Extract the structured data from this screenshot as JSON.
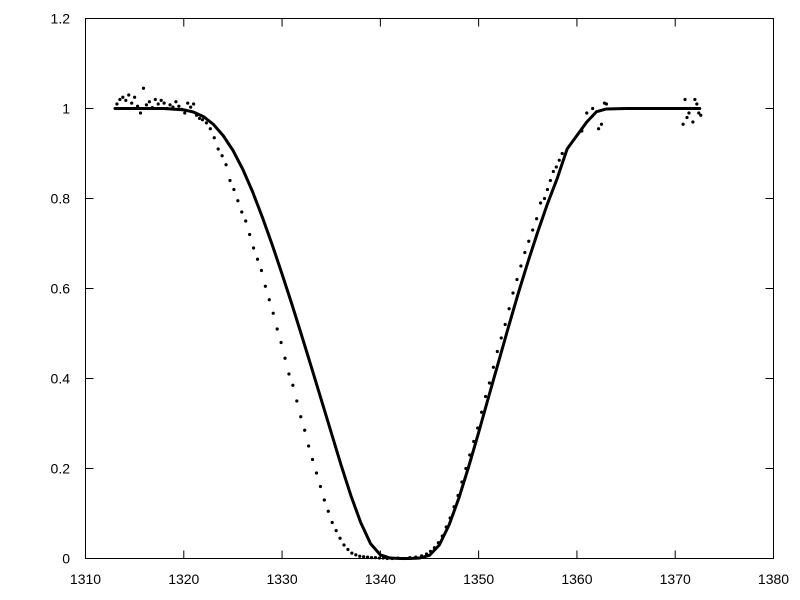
{
  "chart_data": {
    "type": "line",
    "title": "",
    "xlabel": "",
    "ylabel": "",
    "xlim": [
      1310,
      1380
    ],
    "ylim": [
      0,
      1.2
    ],
    "x_ticks": [
      1310,
      1320,
      1330,
      1340,
      1350,
      1360,
      1370,
      1380
    ],
    "y_ticks": [
      0,
      0.2,
      0.4,
      0.6,
      0.8,
      1,
      1.2
    ],
    "x_tick_labels": [
      "1310",
      "1320",
      "1330",
      "1340",
      "1350",
      "1360",
      "1370",
      "1380"
    ],
    "y_tick_labels": [
      "0",
      "0.2",
      "0.4",
      "0.6",
      "0.8",
      "1",
      "1.2"
    ],
    "grid": false,
    "legend": "none",
    "colors": {
      "line": "#000000",
      "points": "#000000",
      "axis": "#000000",
      "background": "#ffffff"
    },
    "series": [
      {
        "kind": "line",
        "x": [
          1313,
          1316,
          1318,
          1320,
          1321,
          1322,
          1323,
          1324,
          1325,
          1326,
          1327,
          1328,
          1329,
          1330,
          1331,
          1332,
          1333,
          1334,
          1335,
          1336,
          1337,
          1338,
          1339,
          1340,
          1341,
          1342,
          1343,
          1344,
          1345,
          1346,
          1347,
          1348,
          1349,
          1350,
          1351,
          1352,
          1353,
          1354,
          1355,
          1356,
          1357,
          1358,
          1359,
          1360,
          1361,
          1362,
          1363,
          1365,
          1368,
          1372.5
        ],
        "y": [
          1.0,
          1.0,
          1.0,
          0.997,
          0.992,
          0.982,
          0.965,
          0.94,
          0.907,
          0.865,
          0.815,
          0.758,
          0.697,
          0.632,
          0.565,
          0.495,
          0.424,
          0.352,
          0.28,
          0.208,
          0.14,
          0.08,
          0.033,
          0.008,
          0.001,
          0.0,
          0.0,
          0.001,
          0.007,
          0.03,
          0.075,
          0.135,
          0.205,
          0.28,
          0.358,
          0.435,
          0.512,
          0.587,
          0.658,
          0.725,
          0.788,
          0.845,
          0.91,
          0.94,
          0.97,
          0.993,
          0.999,
          1.0,
          1.0,
          1.0
        ]
      },
      {
        "kind": "scatter",
        "x": [
          1313.2,
          1313.5,
          1313.8,
          1314.1,
          1314.4,
          1314.7,
          1315.0,
          1315.3,
          1315.6,
          1315.9,
          1316.2,
          1316.5,
          1316.8,
          1317.1,
          1317.4,
          1317.7,
          1318.0,
          1318.3,
          1318.6,
          1318.9,
          1319.2,
          1319.5,
          1319.8,
          1320.1,
          1320.4,
          1320.7,
          1321.0,
          1321.3,
          1321.6,
          1321.9,
          1322.3,
          1322.7,
          1323.1,
          1323.5,
          1323.9,
          1324.3,
          1324.7,
          1325.1,
          1325.5,
          1325.9,
          1326.3,
          1326.7,
          1327.1,
          1327.5,
          1327.9,
          1328.3,
          1328.7,
          1329.1,
          1329.5,
          1329.9,
          1330.3,
          1330.7,
          1331.1,
          1331.5,
          1331.9,
          1332.3,
          1332.7,
          1333.1,
          1333.5,
          1333.9,
          1334.3,
          1334.7,
          1335.1,
          1335.5,
          1335.9,
          1336.3,
          1336.7,
          1337.1,
          1337.5,
          1337.9,
          1338.3,
          1338.7,
          1339.1,
          1339.5,
          1339.9,
          1340.3,
          1340.7,
          1341.2,
          1341.8,
          1342.4,
          1343.0,
          1343.6,
          1344.2,
          1344.7,
          1345.1,
          1345.5,
          1345.9,
          1346.3,
          1346.7,
          1347.1,
          1347.5,
          1347.9,
          1348.3,
          1348.7,
          1349.1,
          1349.5,
          1349.9,
          1350.3,
          1350.7,
          1351.1,
          1351.5,
          1351.9,
          1352.3,
          1352.7,
          1353.1,
          1353.5,
          1353.9,
          1354.3,
          1354.7,
          1355.1,
          1355.5,
          1355.9,
          1356.3,
          1356.7,
          1357.0,
          1357.3,
          1357.6,
          1357.9,
          1358.2,
          1358.5,
          1360.5,
          1361.0,
          1361.6,
          1362.2,
          1362.5,
          1362.8,
          1363.0,
          1370.8,
          1371.0,
          1371.2,
          1371.4,
          1371.6,
          1371.8,
          1372.0,
          1372.2,
          1372.4,
          1372.6
        ],
        "y": [
          1.01,
          1.02,
          1.025,
          1.018,
          1.03,
          1.012,
          1.025,
          1.005,
          0.99,
          1.045,
          1.008,
          1.015,
          1.002,
          1.02,
          1.01,
          1.018,
          1.012,
          1.0,
          1.008,
          1.003,
          1.015,
          1.005,
          0.998,
          0.99,
          1.012,
          1.003,
          1.01,
          0.985,
          0.978,
          0.975,
          0.968,
          0.955,
          0.935,
          0.91,
          0.895,
          0.875,
          0.84,
          0.82,
          0.795,
          0.77,
          0.75,
          0.72,
          0.69,
          0.665,
          0.64,
          0.605,
          0.575,
          0.545,
          0.51,
          0.48,
          0.445,
          0.41,
          0.385,
          0.35,
          0.315,
          0.285,
          0.25,
          0.22,
          0.19,
          0.16,
          0.13,
          0.105,
          0.08,
          0.062,
          0.045,
          0.03,
          0.02,
          0.012,
          0.008,
          0.005,
          0.004,
          0.003,
          0.002,
          0.002,
          0.001,
          0.001,
          0.0,
          0.0,
          0.001,
          0.0,
          0.002,
          0.003,
          0.006,
          0.01,
          0.016,
          0.024,
          0.035,
          0.05,
          0.07,
          0.09,
          0.115,
          0.14,
          0.17,
          0.2,
          0.23,
          0.26,
          0.29,
          0.325,
          0.36,
          0.39,
          0.425,
          0.46,
          0.49,
          0.52,
          0.555,
          0.59,
          0.62,
          0.65,
          0.68,
          0.705,
          0.73,
          0.755,
          0.79,
          0.8,
          0.82,
          0.84,
          0.86,
          0.87,
          0.885,
          0.9,
          0.95,
          0.99,
          1.0,
          0.955,
          0.965,
          1.012,
          1.01,
          0.965,
          1.02,
          0.98,
          0.99,
          1.0,
          0.97,
          1.02,
          1.01,
          0.99,
          0.985
        ]
      }
    ]
  }
}
